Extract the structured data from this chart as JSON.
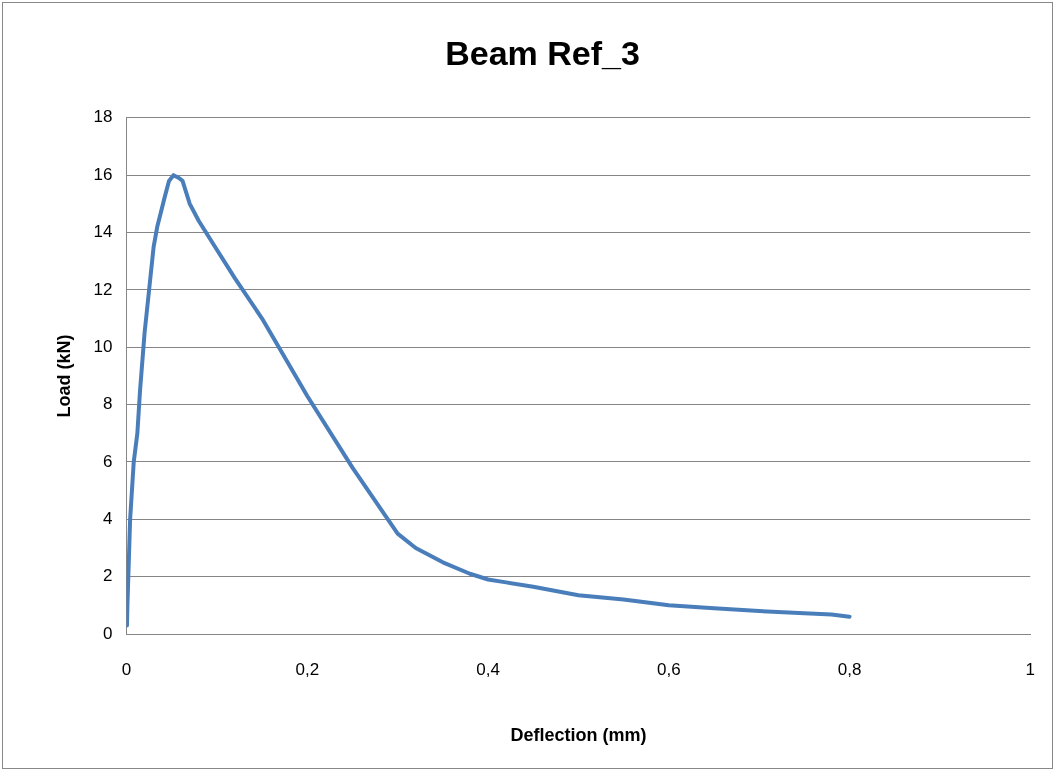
{
  "chart_data": {
    "type": "line",
    "title": "Beam Ref_3",
    "xlabel": "Deflection (mm)",
    "ylabel": "Load (kN)",
    "series": [
      {
        "color": "#4a7ebb",
        "x": [
          0.0005,
          0.001,
          0.002,
          0.004,
          0.008,
          0.012,
          0.015,
          0.02,
          0.025,
          0.03,
          0.034,
          0.038,
          0.042,
          0.047,
          0.052,
          0.058,
          0.062,
          0.066,
          0.07,
          0.08,
          0.1,
          0.12,
          0.15,
          0.2,
          0.25,
          0.3,
          0.32,
          0.35,
          0.38,
          0.4,
          0.42,
          0.45,
          0.5,
          0.55,
          0.6,
          0.65,
          0.7,
          0.75,
          0.78,
          0.8
        ],
        "values": [
          0.3,
          1,
          2,
          4,
          6,
          7,
          8.5,
          10.5,
          12,
          13.5,
          14.2,
          14.7,
          15.2,
          15.8,
          16,
          15.9,
          15.8,
          15.4,
          15,
          14.4,
          13.4,
          12.4,
          11,
          8.3,
          5.8,
          3.5,
          3,
          2.5,
          2.1,
          1.9,
          1.8,
          1.65,
          1.35,
          1.2,
          1,
          0.9,
          0.8,
          0.72,
          0.68,
          0.6
        ]
      }
    ],
    "xlim": [
      0,
      1
    ],
    "xticks": [
      0,
      {
        "value": 0.2,
        "label": "0,2"
      },
      {
        "value": 0.4,
        "label": "0,4"
      },
      {
        "value": 0.6,
        "label": "0,6"
      },
      {
        "value": 0.8,
        "label": "0,8"
      },
      1
    ],
    "ylim": [
      0,
      18
    ],
    "yticks": [
      0,
      2,
      4,
      6,
      8,
      10,
      12,
      14,
      16,
      18
    ],
    "grid": "y",
    "legend": false,
    "marker": "none",
    "line_style": "solid"
  }
}
